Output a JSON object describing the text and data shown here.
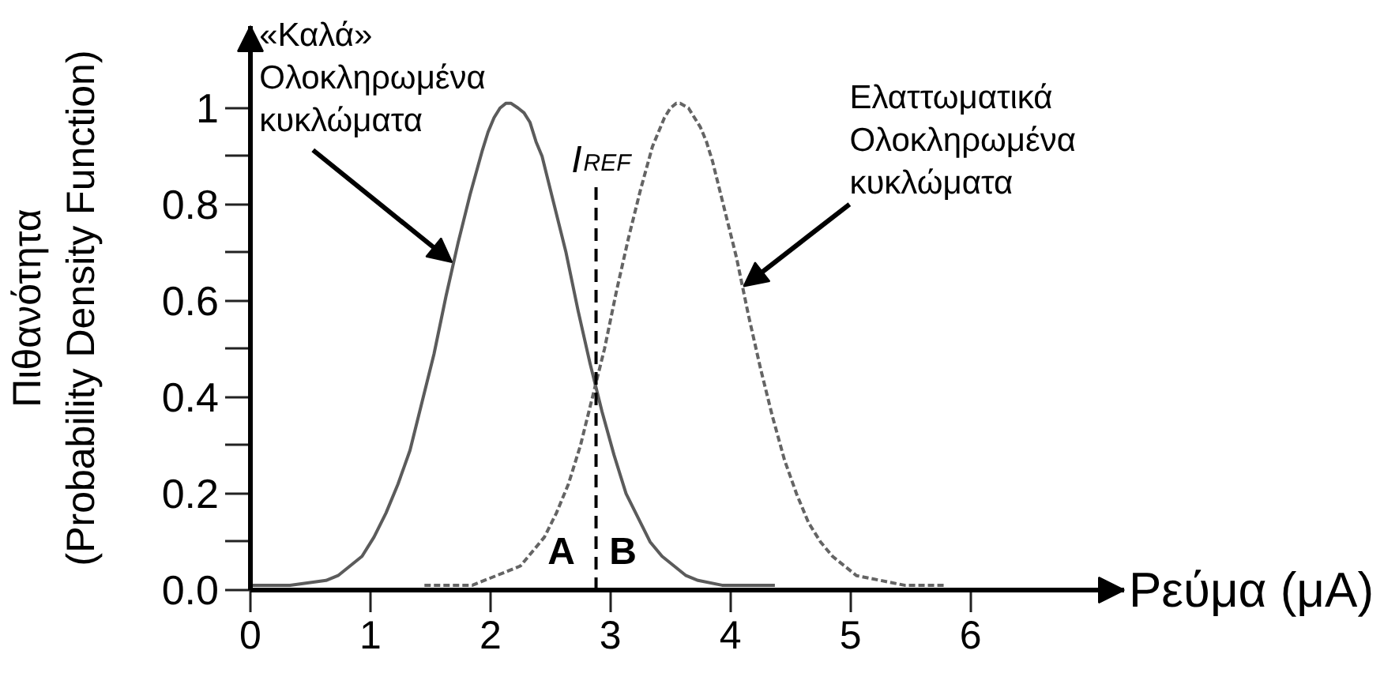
{
  "chart_data": {
    "type": "line",
    "xlabel": "Ρεύμα (μA)",
    "ylabel": "Πιθανότητα\n(Probability Density Function)",
    "xlim": [
      0,
      7.28
    ],
    "ylim": [
      0,
      1.17
    ],
    "xticks": [
      0,
      1,
      2,
      3,
      4,
      5,
      6
    ],
    "yticks": [
      {
        "value": 0,
        "label": "0.0"
      },
      {
        "value": 0.1,
        "label": null
      },
      0.2,
      {
        "value": 0.3,
        "label": null
      },
      0.4,
      {
        "value": 0.5,
        "label": null
      },
      0.6,
      {
        "value": 0.7,
        "label": null
      },
      0.8,
      {
        "value": 0.9,
        "label": null
      },
      1
    ],
    "series": [
      {
        "color": "#5b5b5b",
        "line_style": "solid",
        "x": [
          0,
          0.33,
          0.63,
          0.73,
          0.83,
          0.93,
          1.03,
          1.13,
          1.23,
          1.33,
          1.43,
          1.53,
          1.63,
          1.73,
          1.83,
          1.93,
          1.98,
          2.03,
          2.08,
          2.13,
          2.17,
          2.23,
          2.28,
          2.33,
          2.38,
          2.43,
          2.53,
          2.63,
          2.73,
          2.83,
          2.93,
          3.03,
          3.13,
          3.23,
          3.33,
          3.43,
          3.53,
          3.63,
          3.73,
          3.93,
          4.37
        ],
        "values": [
          0.01,
          0.01,
          0.02,
          0.03,
          0.05,
          0.07,
          0.11,
          0.16,
          0.22,
          0.29,
          0.39,
          0.49,
          0.61,
          0.72,
          0.82,
          0.91,
          0.95,
          0.98,
          1.0,
          1.01,
          1.01,
          1.0,
          0.99,
          0.97,
          0.93,
          0.9,
          0.8,
          0.7,
          0.58,
          0.47,
          0.37,
          0.28,
          0.2,
          0.15,
          0.1,
          0.07,
          0.05,
          0.03,
          0.02,
          0.01,
          0.01
        ]
      },
      {
        "color": "#646464",
        "line_style": "dashed",
        "x": [
          1.45,
          1.85,
          2.05,
          2.15,
          2.25,
          2.35,
          2.45,
          2.55,
          2.65,
          2.75,
          2.85,
          2.95,
          3.05,
          3.15,
          3.25,
          3.35,
          3.4,
          3.45,
          3.5,
          3.55,
          3.58,
          3.65,
          3.7,
          3.75,
          3.8,
          3.85,
          3.95,
          4.05,
          4.15,
          4.25,
          4.35,
          4.45,
          4.55,
          4.65,
          4.75,
          4.85,
          4.95,
          5.05,
          5.25,
          5.45,
          5.8
        ],
        "values": [
          0.01,
          0.01,
          0.03,
          0.04,
          0.05,
          0.08,
          0.11,
          0.16,
          0.22,
          0.3,
          0.4,
          0.5,
          0.62,
          0.73,
          0.83,
          0.92,
          0.95,
          0.98,
          1.0,
          1.01,
          1.01,
          1.0,
          0.98,
          0.96,
          0.93,
          0.89,
          0.79,
          0.69,
          0.57,
          0.46,
          0.36,
          0.27,
          0.2,
          0.14,
          0.1,
          0.07,
          0.05,
          0.03,
          0.02,
          0.01,
          0.01
        ]
      }
    ],
    "ref_lines": [
      {
        "axis": "x",
        "value": 2.88,
        "label": "I$_{REF}$",
        "color": "#000000",
        "line_style": "dashed"
      }
    ],
    "annotations": [
      {
        "text": "«Καλά»\nΟλοκληρωμένα\nκυκλώματα",
        "x": 1.68,
        "y": 0.68
      },
      {
        "text": "Ελαττωματικά\nΟλοκληρωμένα\nκυκλώματα",
        "x": 4.11,
        "y": 0.63
      },
      "A",
      "B"
    ]
  }
}
